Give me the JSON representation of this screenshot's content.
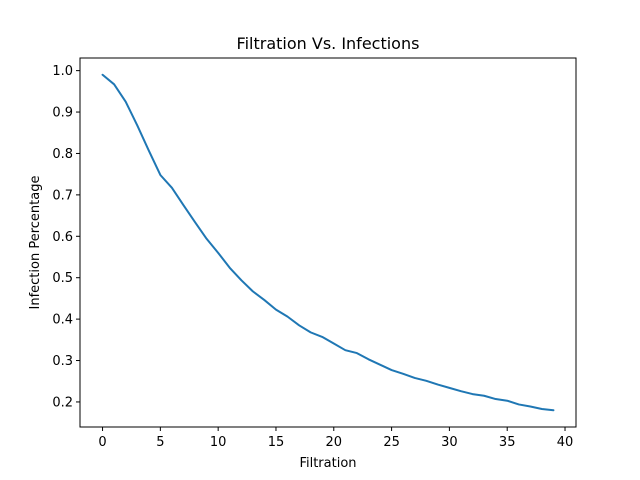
{
  "chart_data": {
    "type": "line",
    "title": "Filtration Vs. Infections",
    "xlabel": "Filtration",
    "ylabel": "Infection Percentage",
    "xlim": [
      -1.95,
      40.95
    ],
    "ylim": [
      0.1395,
      1.0305
    ],
    "xticks": [
      0,
      5,
      10,
      15,
      20,
      25,
      30,
      35,
      40
    ],
    "yticks": [
      0.2,
      0.3,
      0.4,
      0.5,
      0.6,
      0.7,
      0.8,
      0.9,
      1.0
    ],
    "xtick_labels": [
      "0",
      "5",
      "10",
      "15",
      "20",
      "25",
      "30",
      "35",
      "40"
    ],
    "ytick_labels": [
      "0.2",
      "0.3",
      "0.4",
      "0.5",
      "0.6",
      "0.7",
      "0.8",
      "0.9",
      "1.0"
    ],
    "grid": false,
    "legend": "none",
    "line_color": "#1f77b4",
    "series": [
      {
        "x": [
          0,
          1,
          2,
          3,
          4,
          5,
          6,
          7,
          8,
          9,
          10,
          11,
          12,
          13,
          14,
          15,
          16,
          17,
          18,
          19,
          20,
          21,
          22,
          23,
          24,
          25,
          26,
          27,
          28,
          29,
          30,
          31,
          32,
          33,
          34,
          35,
          36,
          37,
          38,
          39
        ],
        "values": [
          0.99,
          0.967,
          0.925,
          0.868,
          0.807,
          0.748,
          0.717,
          0.675,
          0.634,
          0.594,
          0.56,
          0.524,
          0.494,
          0.467,
          0.446,
          0.423,
          0.406,
          0.385,
          0.368,
          0.357,
          0.341,
          0.325,
          0.318,
          0.303,
          0.29,
          0.277,
          0.268,
          0.258,
          0.251,
          0.242,
          0.234,
          0.226,
          0.219,
          0.215,
          0.207,
          0.203,
          0.194,
          0.189,
          0.183,
          0.18
        ]
      }
    ]
  }
}
